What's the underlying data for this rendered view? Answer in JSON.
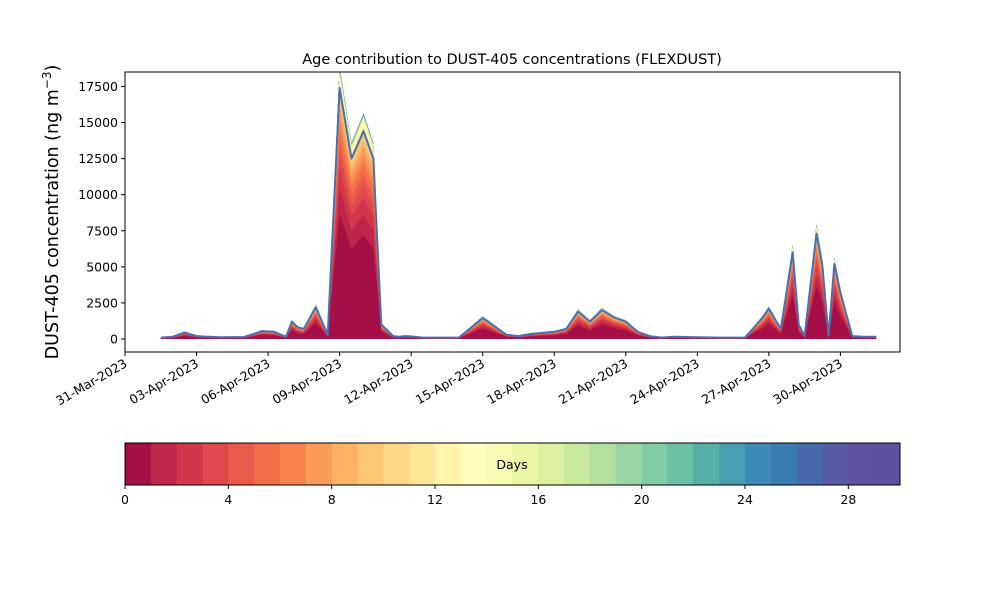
{
  "chart_data": {
    "type": "area",
    "title": "Age contribution to DUST-405 concentrations (FLEXDUST)",
    "ylabel": "DUST-405 concentration (ng m",
    "ylabel_exponent": "−3",
    "ylabel_close": ")",
    "xlabel": "",
    "xlim": [
      "2023-03-31T00:00",
      "2023-05-02T12:00"
    ],
    "ylim": [
      -900,
      18500
    ],
    "x_ticks": [
      "31-Mar-2023",
      "03-Apr-2023",
      "06-Apr-2023",
      "09-Apr-2023",
      "12-Apr-2023",
      "15-Apr-2023",
      "18-Apr-2023",
      "21-Apr-2023",
      "24-Apr-2023",
      "27-Apr-2023",
      "30-Apr-2023"
    ],
    "y_ticks": [
      "0",
      "2500",
      "5000",
      "7500",
      "10000",
      "12500",
      "15000",
      "17500"
    ],
    "y_tick_values": [
      0,
      2500,
      5000,
      7500,
      10000,
      12500,
      15000,
      17500
    ],
    "total_line_color": "#4a6fb0",
    "total_series": {
      "x": [
        "2023-04-01T12:00",
        "2023-04-02T00:00",
        "2023-04-02T12:00",
        "2023-04-03T00:00",
        "2023-04-03T12:00",
        "2023-04-04T00:00",
        "2023-04-05T00:00",
        "2023-04-05T18:00",
        "2023-04-06T06:00",
        "2023-04-06T18:00",
        "2023-04-07T00:00",
        "2023-04-07T06:00",
        "2023-04-07T12:00",
        "2023-04-08T00:00",
        "2023-04-08T12:00",
        "2023-04-09T00:00",
        "2023-04-09T12:00",
        "2023-04-10T00:00",
        "2023-04-10T10:00",
        "2023-04-10T12:00",
        "2023-04-10T18:00",
        "2023-04-11T00:00",
        "2023-04-11T06:00",
        "2023-04-11T12:00",
        "2023-04-11T18:00",
        "2023-04-12T00:00",
        "2023-04-12T12:00",
        "2023-04-13T00:00",
        "2023-04-14T00:00",
        "2023-04-15T00:00",
        "2023-04-16T00:00",
        "2023-04-16T12:00",
        "2023-04-17T00:00",
        "2023-04-18T00:00",
        "2023-04-18T12:00",
        "2023-04-19T00:00",
        "2023-04-19T12:00",
        "2023-04-20T00:00",
        "2023-04-20T12:00",
        "2023-04-21T00:00",
        "2023-04-21T12:00",
        "2023-04-22T00:00",
        "2023-04-22T12:00",
        "2023-04-23T00:00",
        "2023-04-24T00:00",
        "2023-04-25T00:00",
        "2023-04-26T00:00",
        "2023-04-26T18:00",
        "2023-04-27T00:00",
        "2023-04-27T12:00",
        "2023-04-28T00:00",
        "2023-04-28T06:00",
        "2023-04-28T12:00",
        "2023-04-29T00:00",
        "2023-04-29T06:00",
        "2023-04-29T12:00",
        "2023-04-29T18:00",
        "2023-04-30T00:00",
        "2023-04-30T12:00",
        "2023-05-01T00:00",
        "2023-05-01T12:00"
      ],
      "values": [
        100,
        150,
        450,
        200,
        150,
        120,
        140,
        550,
        500,
        150,
        1200,
        800,
        700,
        2200,
        300,
        17400,
        12500,
        14400,
        12500,
        9500,
        1000,
        600,
        200,
        150,
        200,
        180,
        100,
        100,
        100,
        1450,
        300,
        200,
        350,
        500,
        700,
        1900,
        1200,
        2000,
        1500,
        1200,
        500,
        200,
        100,
        150,
        120,
        100,
        100,
        1500,
        2100,
        700,
        6000,
        1000,
        200,
        7300,
        5000,
        200,
        5200,
        3200,
        200,
        150,
        150
      ]
    },
    "band_share": [
      0.5,
      0.1,
      0.08,
      0.06,
      0.05,
      0.05,
      0.04,
      0.04,
      0.03,
      0.03,
      0.02,
      0.02,
      0.015,
      0.01,
      0.01,
      0.008,
      0.005,
      0.003,
      0.002,
      0.002,
      0.001,
      0.001,
      0.001,
      0.001,
      0.001,
      0.001,
      0.001,
      0.001,
      0.001,
      0.001
    ],
    "colorbar": {
      "label": "Days",
      "range": [
        0,
        30
      ],
      "ticks": [
        "0",
        "4",
        "8",
        "12",
        "16",
        "20",
        "24",
        "28"
      ],
      "tick_values": [
        0,
        4,
        8,
        12,
        16,
        20,
        24,
        28
      ],
      "colors": [
        "#a50f45",
        "#bf2449",
        "#d2364b",
        "#e0484d",
        "#ea5a4a",
        "#f26e48",
        "#f7844e",
        "#fa9b5a",
        "#fdb163",
        "#fdc674",
        "#fed885",
        "#fee898",
        "#fff4aa",
        "#fffcbd",
        "#f6fbb1",
        "#ecf6a3",
        "#ddf09f",
        "#c9e99d",
        "#b2e09e",
        "#99d6a2",
        "#80cca4",
        "#6ac1a5",
        "#56b0a6",
        "#4a9eb2",
        "#3d8ab8",
        "#3b7bb4",
        "#4769ad",
        "#5659a3",
        "#5f50a0",
        "#5e4fa2"
      ]
    }
  }
}
